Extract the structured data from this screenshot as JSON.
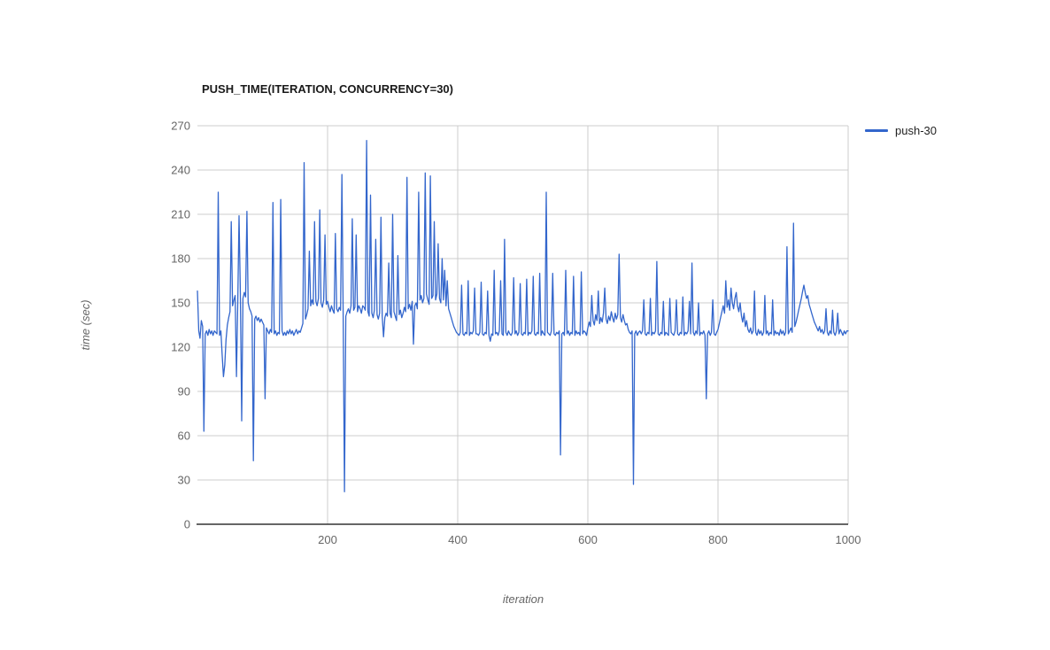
{
  "chart_data": {
    "type": "line",
    "title": "PUSH_TIME(ITERATION, CONCURRENCY=30)",
    "xlabel": "iteration",
    "ylabel": "time (sec)",
    "xlim": [
      0,
      1000
    ],
    "ylim": [
      0,
      270
    ],
    "x_ticks": [
      200,
      400,
      600,
      800,
      1000
    ],
    "y_ticks": [
      0,
      30,
      60,
      90,
      120,
      150,
      180,
      210,
      240,
      270
    ],
    "grid": true,
    "legend_position": "right",
    "x_start": 0,
    "x_step": 2,
    "gridline_color": "#cccccc",
    "axisline_color": "#333333",
    "series": [
      {
        "name": "push-30",
        "color": "#3366cc",
        "values": [
          158,
          131,
          126,
          138,
          134,
          63,
          129,
          131,
          128,
          132,
          129,
          131,
          128,
          131,
          130,
          129,
          225,
          128,
          131,
          115,
          100,
          108,
          125,
          135,
          140,
          144,
          205,
          148,
          152,
          155,
          100,
          152,
          209,
          156,
          70,
          153,
          157,
          154,
          212,
          150,
          146,
          144,
          141,
          43,
          139,
          141,
          138,
          140,
          137,
          139,
          137,
          135,
          85,
          133,
          131,
          129,
          132,
          130,
          218,
          129,
          131,
          128,
          130,
          129,
          220,
          131,
          128,
          130,
          128,
          131,
          129,
          132,
          129,
          131,
          128,
          130,
          132,
          129,
          131,
          130,
          133,
          136,
          245,
          139,
          142,
          146,
          185,
          148,
          152,
          149,
          205,
          151,
          148,
          153,
          213,
          150,
          147,
          152,
          196,
          149,
          151,
          147,
          144,
          148,
          145,
          143,
          197,
          146,
          144,
          147,
          145,
          237,
          143,
          22,
          141,
          144,
          146,
          143,
          148,
          207,
          145,
          147,
          196,
          144,
          148,
          146,
          143,
          148,
          147,
          145,
          260,
          144,
          141,
          223,
          143,
          140,
          145,
          193,
          142,
          139,
          143,
          208,
          141,
          127,
          140,
          143,
          141,
          177,
          143,
          140,
          210,
          144,
          141,
          138,
          182,
          142,
          145,
          140,
          143,
          147,
          144,
          235,
          146,
          149,
          145,
          151,
          122,
          148,
          150,
          146,
          225,
          152,
          155,
          150,
          153,
          238,
          156,
          152,
          149,
          236,
          153,
          155,
          205,
          152,
          156,
          190,
          153,
          150,
          180,
          152,
          172,
          148,
          165,
          146,
          143,
          140,
          137,
          134,
          132,
          130,
          129,
          128,
          130,
          162,
          129,
          128,
          130,
          129,
          165,
          128,
          130,
          129,
          131,
          160,
          129,
          129,
          128,
          130,
          164,
          129,
          128,
          130,
          129,
          158,
          128,
          124,
          129,
          128,
          172,
          129,
          130,
          128,
          131,
          165,
          129,
          128,
          193,
          130,
          128,
          131,
          129,
          128,
          130,
          167,
          129,
          131,
          128,
          130,
          163,
          129,
          128,
          130,
          129,
          166,
          128,
          130,
          129,
          131,
          168,
          129,
          128,
          130,
          129,
          170,
          128,
          131,
          129,
          128,
          225,
          130,
          129,
          128,
          131,
          170,
          129,
          128,
          130,
          129,
          131,
          47,
          129,
          130,
          128,
          172,
          129,
          131,
          128,
          130,
          129,
          168,
          128,
          131,
          129,
          130,
          128,
          171,
          129,
          131,
          130,
          128,
          133,
          137,
          134,
          155,
          138,
          135,
          142,
          138,
          158,
          136,
          140,
          137,
          143,
          160,
          139,
          136,
          141,
          138,
          144,
          140,
          137,
          143,
          139,
          142,
          183,
          140,
          137,
          142,
          138,
          135,
          136,
          132,
          130,
          129,
          131,
          27,
          129,
          131,
          128,
          130,
          131,
          129,
          131,
          152,
          129,
          128,
          130,
          129,
          153,
          128,
          130,
          129,
          131,
          178,
          129,
          128,
          130,
          129,
          151,
          128,
          130,
          129,
          128,
          153,
          130,
          129,
          128,
          131,
          152,
          129,
          128,
          130,
          129,
          154,
          128,
          130,
          129,
          131,
          151,
          129,
          177,
          130,
          128,
          131,
          129,
          150,
          128,
          130,
          129,
          131,
          128,
          85,
          129,
          131,
          128,
          130,
          152,
          129,
          128,
          130,
          132,
          136,
          140,
          144,
          148,
          143,
          165,
          147,
          152,
          145,
          160,
          150,
          146,
          153,
          157,
          148,
          144,
          150,
          141,
          137,
          143,
          134,
          138,
          132,
          130,
          133,
          129,
          131,
          158,
          130,
          128,
          132,
          129,
          131,
          128,
          130,
          155,
          129,
          131,
          128,
          130,
          129,
          152,
          128,
          131,
          129,
          130,
          128,
          132,
          129,
          131,
          128,
          130,
          188,
          129,
          131,
          133,
          130,
          204,
          134,
          137,
          141,
          145,
          149,
          153,
          158,
          162,
          157,
          153,
          155,
          149,
          146,
          143,
          140,
          137,
          135,
          133,
          131,
          134,
          130,
          132,
          129,
          131,
          146,
          130,
          128,
          131,
          129,
          145,
          130,
          128,
          131,
          143,
          129,
          132,
          130,
          128,
          131,
          129,
          131,
          131
        ]
      }
    ]
  }
}
